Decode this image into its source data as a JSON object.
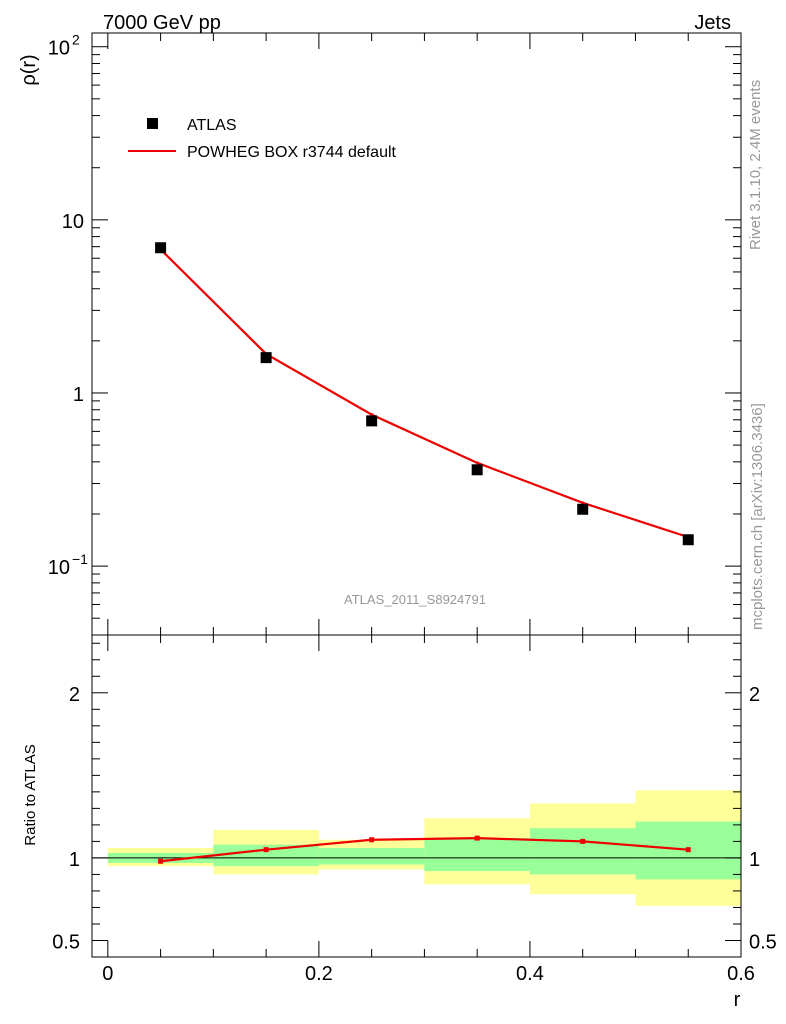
{
  "header": {
    "left": "7000 GeV pp",
    "right": "Jets",
    "side_top": "Rivet 3.1.10,  2.4M events",
    "side_bottom": "mcplots.cern.ch [arXiv:1306.3436]",
    "analysis": "ATLAS_2011_S8924791"
  },
  "colors": {
    "data": "#000000",
    "mc": "#ee0000",
    "band_inner": "#99ff99",
    "band_outer": "#ffff99",
    "axis": "#000000",
    "watermark": "#999999"
  },
  "chart_data": [
    {
      "type": "scatter",
      "panel": "main",
      "ylabel": "ρ(r)",
      "xlabel": "r",
      "yscale": "log",
      "ylim": [
        0.04,
        120
      ],
      "xlim": [
        -0.015,
        0.6
      ],
      "yticks": [
        {
          "value": 0.1,
          "label": "10",
          "exp": "−1"
        },
        {
          "value": 1,
          "label": "1",
          "exp": ""
        },
        {
          "value": 10,
          "label": "10",
          "exp": ""
        },
        {
          "value": 100,
          "label": "10",
          "exp": "2"
        }
      ],
      "legend": [
        {
          "label": "ATLAS",
          "marker": "square"
        },
        {
          "label": "POWHEG BOX r3744 default",
          "marker": "line"
        }
      ],
      "series": [
        {
          "name": "ATLAS",
          "x": [
            0.05,
            0.15,
            0.25,
            0.35,
            0.45,
            0.55
          ],
          "y": [
            6.9,
            1.6,
            0.69,
            0.36,
            0.213,
            0.142
          ]
        },
        {
          "name": "POWHEG BOX r3744 default",
          "x": [
            0.05,
            0.15,
            0.25,
            0.35,
            0.45,
            0.55
          ],
          "y": [
            6.75,
            1.68,
            0.75,
            0.395,
            0.232,
            0.147
          ]
        }
      ]
    },
    {
      "type": "line",
      "panel": "ratio",
      "ylabel": "Ratio to ATLAS",
      "xlabel": "r",
      "ylim": [
        0.4,
        2.35
      ],
      "xlim": [
        -0.015,
        0.6
      ],
      "xticks": [
        {
          "value": 0,
          "label": "0"
        },
        {
          "value": 0.2,
          "label": "0.2"
        },
        {
          "value": 0.4,
          "label": "0.4"
        },
        {
          "value": 0.6,
          "label": "0.6"
        }
      ],
      "yticks": [
        {
          "value": 0.5,
          "label": "0.5"
        },
        {
          "value": 1,
          "label": "1"
        },
        {
          "value": 2,
          "label": "2"
        }
      ],
      "bins": [
        [
          0.0,
          0.1
        ],
        [
          0.1,
          0.2
        ],
        [
          0.2,
          0.3
        ],
        [
          0.3,
          0.4
        ],
        [
          0.4,
          0.5
        ],
        [
          0.5,
          0.6
        ]
      ],
      "band_inner": [
        [
          0.97,
          1.03
        ],
        [
          0.95,
          1.08
        ],
        [
          0.96,
          1.06
        ],
        [
          0.92,
          1.12
        ],
        [
          0.9,
          1.18
        ],
        [
          0.87,
          1.22
        ]
      ],
      "band_outer": [
        [
          0.95,
          1.06
        ],
        [
          0.9,
          1.17
        ],
        [
          0.93,
          1.11
        ],
        [
          0.84,
          1.24
        ],
        [
          0.78,
          1.33
        ],
        [
          0.71,
          1.41
        ]
      ],
      "series": [
        {
          "name": "POWHEG BOX r3744 default",
          "x": [
            0.05,
            0.15,
            0.25,
            0.35,
            0.45,
            0.55
          ],
          "y": [
            0.98,
            1.05,
            1.11,
            1.12,
            1.1,
            1.05
          ]
        }
      ]
    }
  ]
}
